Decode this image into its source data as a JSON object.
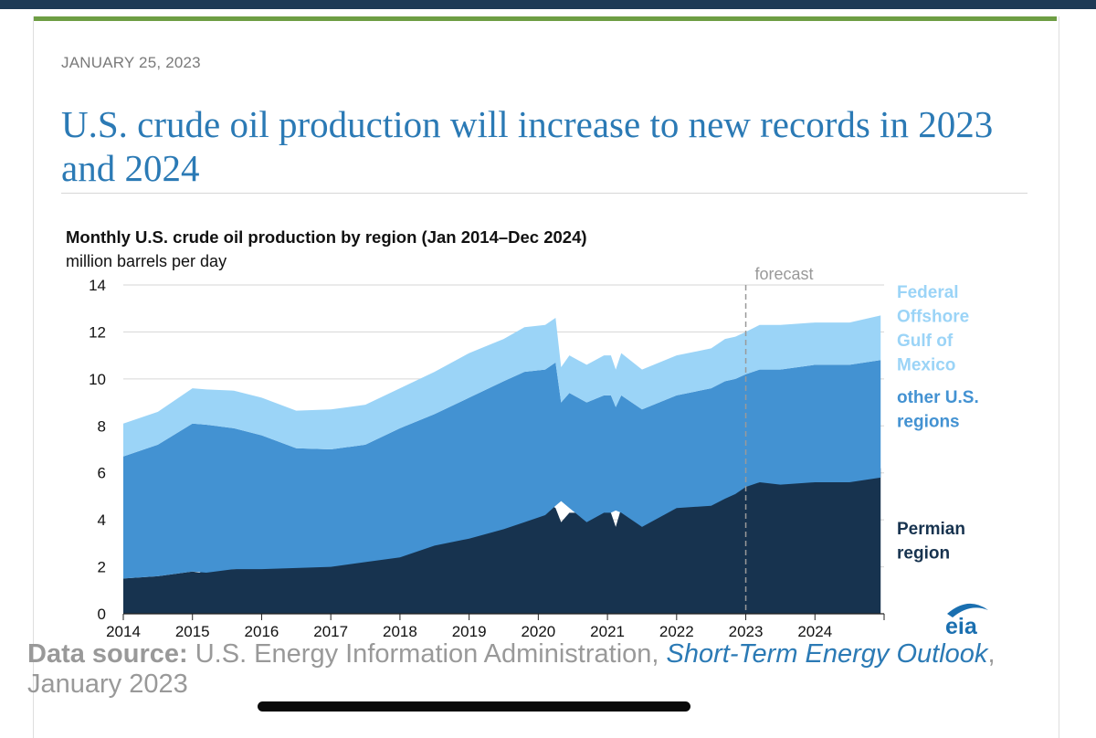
{
  "page": {
    "date": "JANUARY 25, 2023",
    "headline": "U.S. crude oil production will increase to new records in 2023 and 2024"
  },
  "source": {
    "label": "Data source:",
    "text1": " U.S. Energy Information Administration, ",
    "link": "Short-Term Energy Outlook",
    "text2": ", January 2023"
  },
  "logo": {
    "text": "eia",
    "color": "#1a6fb0"
  },
  "colors": {
    "permian": "#17334f",
    "other": "#4392d2",
    "gulf": "#9bd4f7",
    "gulf_label": "#9bd4f7"
  },
  "chart_data": {
    "type": "area",
    "stacked": true,
    "title": "Monthly U.S. crude oil production by region (Jan 2014–Dec 2024)",
    "ylabel": "million barrels per day",
    "xlabel": "",
    "xlim": [
      2014,
      2025
    ],
    "ylim": [
      0,
      14
    ],
    "yticks": [
      0,
      2,
      4,
      6,
      8,
      10,
      12,
      14
    ],
    "xticks": [
      "2014",
      "2015",
      "2016",
      "2017",
      "2018",
      "2019",
      "2020",
      "2021",
      "2022",
      "2023",
      "2024"
    ],
    "forecast_start": 2023,
    "forecast_label": "forecast",
    "series": [
      {
        "name": "Permian region",
        "label_lines": [
          "Permian",
          "region"
        ],
        "points": [
          [
            2014,
            1.5
          ],
          [
            2014.5,
            1.6
          ],
          [
            2015,
            1.8
          ],
          [
            2015.1,
            1.75
          ],
          [
            2015.25,
            1.9
          ],
          [
            2015.6,
            1.9
          ],
          [
            2016,
            1.95
          ],
          [
            2016.5,
            2.0
          ],
          [
            2017,
            2.2
          ],
          [
            2017.5,
            2.4
          ],
          [
            2018,
            2.9
          ],
          [
            2018.3,
            3.2
          ],
          [
            2018.8,
            3.6
          ],
          [
            2019,
            3.9
          ],
          [
            2019.5,
            4.2
          ],
          [
            2019.8,
            4.6
          ],
          [
            2020.1,
            4.8
          ],
          [
            2020.25,
            4.5
          ],
          [
            2020.33,
            3.9
          ],
          [
            2020.45,
            4.3
          ],
          [
            2020.7,
            4.3
          ],
          [
            2020.95,
            4.4
          ],
          [
            2021.05,
            4.3
          ],
          [
            2021.12,
            3.7
          ],
          [
            2021.2,
            4.5
          ],
          [
            2021.5,
            4.6
          ],
          [
            2022,
            4.9
          ],
          [
            2022.5,
            5.1
          ],
          [
            2022.7,
            5.4
          ],
          [
            2022.85,
            5.6
          ],
          [
            2023,
            5.5
          ],
          [
            2023.2,
            5.6
          ],
          [
            2023.5,
            5.6
          ],
          [
            2024,
            5.8
          ],
          [
            2024.5,
            6.0
          ],
          [
            2024.95,
            6.2
          ]
        ]
      },
      {
        "name": "other U.S. regions",
        "label_lines": [
          "other U.S.",
          "regions"
        ],
        "points": [
          [
            2014,
            5.2
          ],
          [
            2014.5,
            5.6
          ],
          [
            2015,
            6.3
          ],
          [
            2015.2,
            6.3
          ],
          [
            2015.6,
            6.0
          ],
          [
            2016,
            5.7
          ],
          [
            2016.5,
            5.1
          ],
          [
            2017,
            5.0
          ],
          [
            2017.5,
            5.0
          ],
          [
            2018,
            5.5
          ],
          [
            2018.5,
            5.6
          ],
          [
            2019,
            6.0
          ],
          [
            2019.5,
            6.3
          ],
          [
            2019.8,
            6.4
          ],
          [
            2020.1,
            6.2
          ],
          [
            2020.25,
            6.1
          ],
          [
            2020.33,
            4.2
          ],
          [
            2020.45,
            4.9
          ],
          [
            2020.7,
            5.1
          ],
          [
            2020.95,
            5.0
          ],
          [
            2021.05,
            5.0
          ],
          [
            2021.12,
            4.4
          ],
          [
            2021.2,
            5.0
          ],
          [
            2021.5,
            5.0
          ],
          [
            2022,
            4.8
          ],
          [
            2022.5,
            5.0
          ],
          [
            2022.7,
            5.0
          ],
          [
            2022.85,
            4.9
          ],
          [
            2023,
            4.8
          ],
          [
            2023.2,
            4.8
          ],
          [
            2023.5,
            4.9
          ],
          [
            2024,
            5.0
          ],
          [
            2024.5,
            5.0
          ],
          [
            2024.95,
            5.0
          ]
        ]
      },
      {
        "name": "Federal Offshore Gulf of Mexico",
        "label_lines": [
          "Federal",
          "Offshore",
          "Gulf of",
          "Mexico"
        ],
        "points": [
          [
            2014,
            1.4
          ],
          [
            2014.5,
            1.4
          ],
          [
            2015,
            1.5
          ],
          [
            2015.2,
            1.5
          ],
          [
            2015.6,
            1.6
          ],
          [
            2016,
            1.6
          ],
          [
            2016.5,
            1.6
          ],
          [
            2017,
            1.7
          ],
          [
            2017.5,
            1.7
          ],
          [
            2018,
            1.7
          ],
          [
            2018.5,
            1.8
          ],
          [
            2019,
            1.9
          ],
          [
            2019.5,
            1.8
          ],
          [
            2019.8,
            1.9
          ],
          [
            2020.1,
            1.9
          ],
          [
            2020.25,
            1.9
          ],
          [
            2020.33,
            1.5
          ],
          [
            2020.45,
            1.6
          ],
          [
            2020.7,
            1.6
          ],
          [
            2020.95,
            1.7
          ],
          [
            2021.05,
            1.7
          ],
          [
            2021.12,
            1.6
          ],
          [
            2021.2,
            1.8
          ],
          [
            2021.5,
            1.7
          ],
          [
            2022,
            1.7
          ],
          [
            2022.5,
            1.7
          ],
          [
            2022.7,
            1.8
          ],
          [
            2022.85,
            1.8
          ],
          [
            2023,
            1.8
          ],
          [
            2023.2,
            1.9
          ],
          [
            2023.5,
            1.9
          ],
          [
            2024,
            1.8
          ],
          [
            2024.5,
            1.8
          ],
          [
            2024.95,
            1.9
          ]
        ]
      }
    ]
  }
}
